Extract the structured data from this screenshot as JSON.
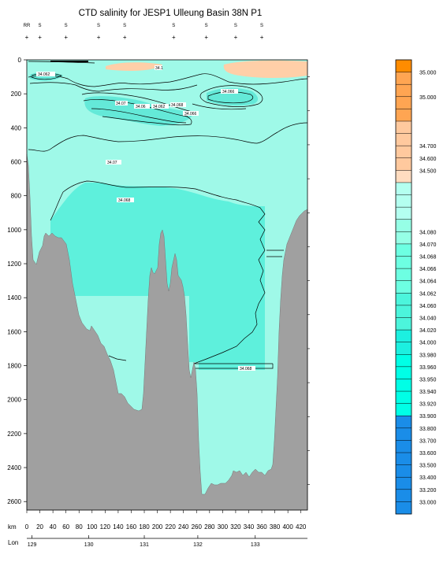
{
  "chart_data": {
    "type": "heatmap",
    "title": "CTD salinity for JESP1 Ulleung Basin 38N P1",
    "station_labels": [
      "RR",
      "S",
      "S",
      "S",
      "S",
      "S",
      "S",
      "S",
      "S"
    ],
    "station_km": [
      0,
      20,
      60,
      110,
      150,
      225,
      275,
      320,
      360
    ],
    "y_axis": {
      "label": "",
      "ticks": [
        0,
        200,
        400,
        600,
        800,
        1000,
        1200,
        1400,
        1600,
        1800,
        2000,
        2200,
        2400,
        2600
      ],
      "range": [
        0,
        2650
      ],
      "inverted": true
    },
    "x_axis": {
      "label": "km",
      "ticks": [
        0,
        20,
        40,
        60,
        80,
        100,
        120,
        140,
        160,
        180,
        200,
        220,
        240,
        260,
        280,
        300,
        320,
        340,
        360,
        380,
        400,
        420
      ],
      "range": [
        0,
        430
      ]
    },
    "lon_axis": {
      "label": "Lon",
      "ticks": [
        {
          "km": 8,
          "label": "129"
        },
        {
          "km": 95,
          "label": "130"
        },
        {
          "km": 180,
          "label": "131"
        },
        {
          "km": 262,
          "label": "132"
        },
        {
          "km": 350,
          "label": "133"
        }
      ]
    },
    "colorbar": {
      "labels": [
        "35.000",
        "35.000",
        "34.700",
        "34.600",
        "34.500",
        "34.080",
        "34.070",
        "34.068",
        "34.066",
        "34.064",
        "34.062",
        "34.060",
        "34.040",
        "34.020",
        "34.000",
        "33.980",
        "33.960",
        "33.950",
        "33.940",
        "33.920",
        "33.900",
        "33.800",
        "33.700",
        "33.600",
        "33.500",
        "33.400",
        "33.200",
        "33.000"
      ],
      "colors": {
        "orange_dark": "#ff8c00",
        "orange": "#ffa552",
        "peach": "#ffc99e",
        "peach_light": "#ffdcc0",
        "aqua_pale": "#b4fff0",
        "aqua_light": "#96ffe6",
        "aqua": "#6dffe2",
        "aqua_mid": "#4cf5dc",
        "cyan": "#1cf0e0",
        "cyan_bright": "#00ffe6",
        "blue": "#1a8de8",
        "blue_deep": "#0096e0"
      }
    },
    "contour_labels": [
      {
        "text": "34.1"
      },
      {
        "text": "34.062"
      },
      {
        "text": "34.066"
      },
      {
        "text": "34.07"
      },
      {
        "text": "34.06"
      },
      {
        "text": "34.068"
      }
    ],
    "colors": {
      "background_section": "#aaffea",
      "deep_water": "#5ef0dc",
      "upper_water": "#8bf5e3",
      "bathymetry": "#a0a0a0",
      "high_salinity": "#ffcfa8"
    }
  }
}
